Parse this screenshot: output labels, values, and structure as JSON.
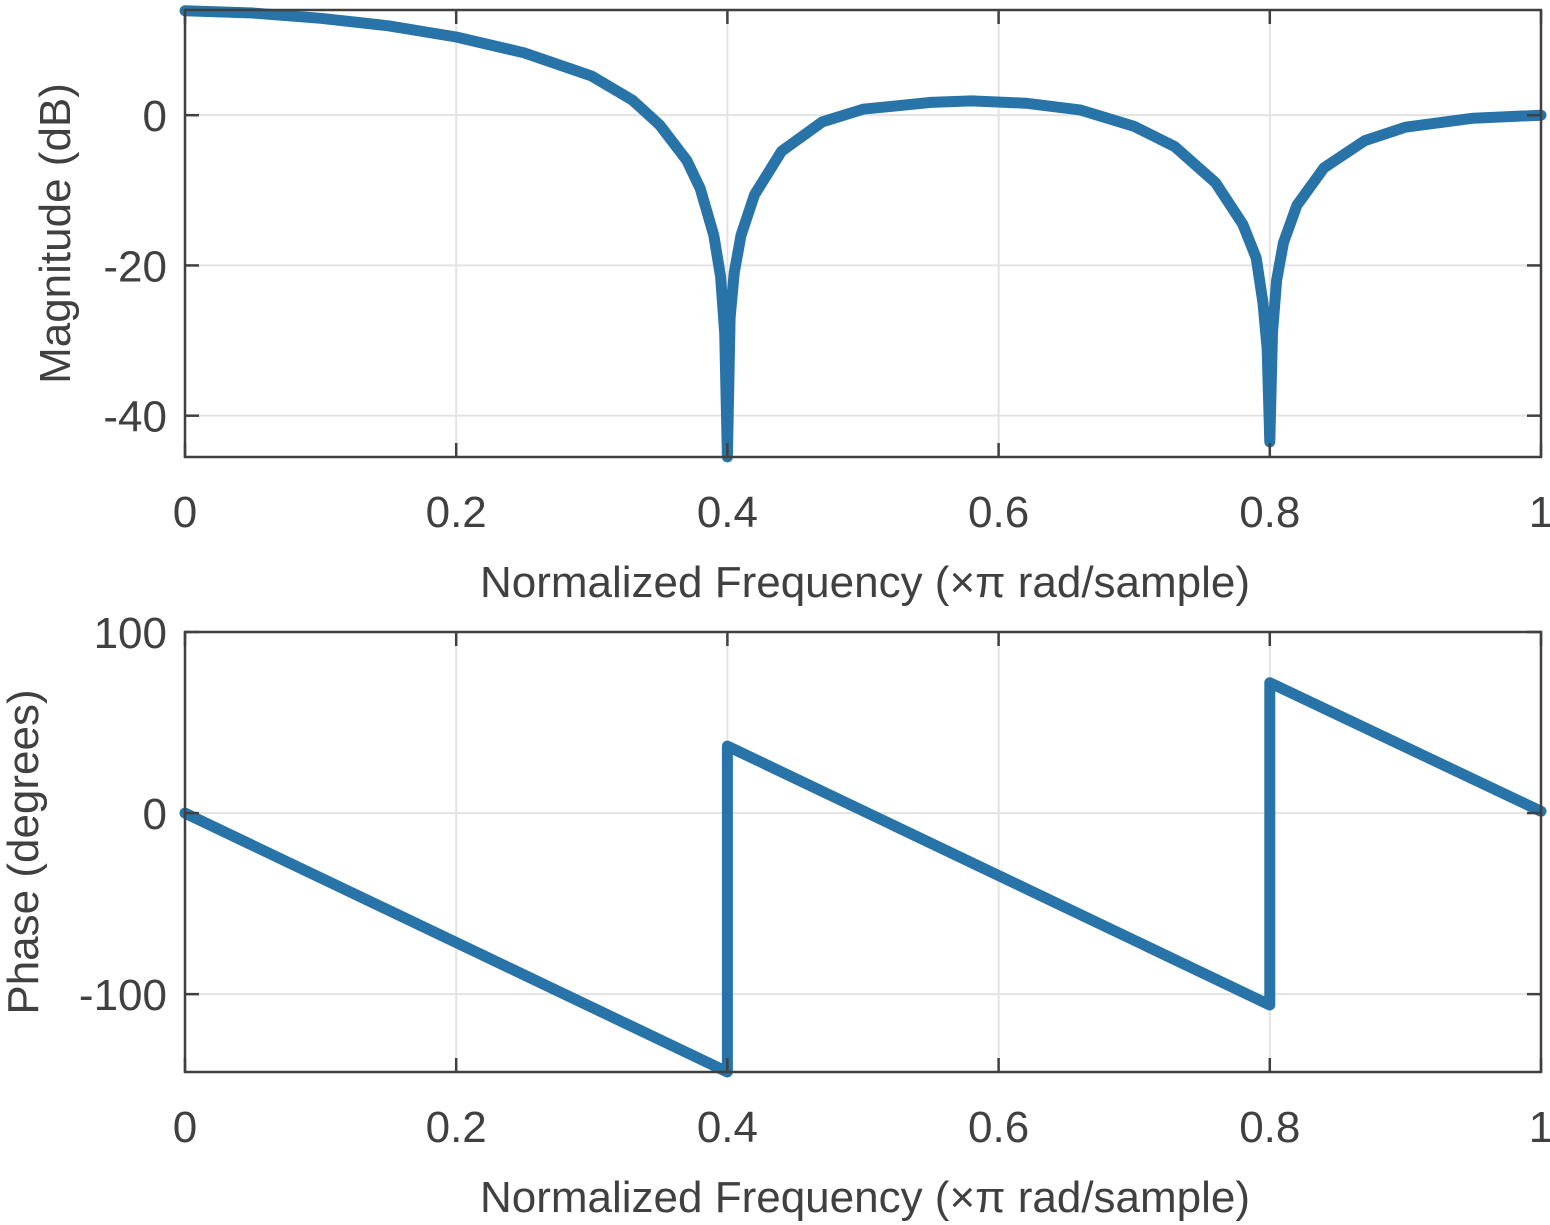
{
  "chart_data": [
    {
      "type": "line",
      "id": "magnitude",
      "title": "",
      "xlabel": "Normalized Frequency  (×π rad/sample)",
      "ylabel": "Magnitude (dB)",
      "xlim": [
        0,
        1
      ],
      "ylim": [
        -45.5,
        14
      ],
      "xticks": [
        0,
        0.2,
        0.4,
        0.6,
        0.8,
        1
      ],
      "xtick_labels": [
        "0",
        "0.2",
        "0.4",
        "0.6",
        "0.8",
        "1"
      ],
      "yticks": [
        -40,
        -20,
        0
      ],
      "ytick_labels": [
        "-40",
        "-20",
        "0"
      ],
      "grid": true,
      "color": "#2874a8",
      "series": [
        {
          "name": "magnitude",
          "x": [
            0,
            0.05,
            0.1,
            0.15,
            0.2,
            0.25,
            0.3,
            0.33,
            0.35,
            0.37,
            0.38,
            0.39,
            0.395,
            0.398,
            0.4,
            0.402,
            0.405,
            0.41,
            0.42,
            0.44,
            0.47,
            0.5,
            0.55,
            0.58,
            0.62,
            0.66,
            0.7,
            0.73,
            0.76,
            0.78,
            0.79,
            0.795,
            0.798,
            0.8,
            0.802,
            0.805,
            0.81,
            0.82,
            0.84,
            0.87,
            0.9,
            0.95,
            1.0
          ],
          "y": [
            13.9,
            13.6,
            12.9,
            11.9,
            10.4,
            8.3,
            5.2,
            2.0,
            -1.3,
            -6.0,
            -9.8,
            -16.0,
            -21.5,
            -29.0,
            -45.5,
            -27.0,
            -21.0,
            -16.0,
            -10.6,
            -4.8,
            -0.9,
            0.8,
            1.7,
            1.9,
            1.6,
            0.7,
            -1.5,
            -4.2,
            -9.0,
            -14.5,
            -19.0,
            -25.0,
            -31.0,
            -43.5,
            -29.0,
            -22.0,
            -17.0,
            -12.0,
            -7.0,
            -3.4,
            -1.6,
            -0.4,
            0.0
          ]
        }
      ]
    },
    {
      "type": "line",
      "id": "phase",
      "title": "",
      "xlabel": "Normalized Frequency  (×π rad/sample)",
      "ylabel": "Phase (degrees)",
      "xlim": [
        0,
        1
      ],
      "ylim": [
        -143,
        100
      ],
      "xticks": [
        0,
        0.2,
        0.4,
        0.6,
        0.8,
        1
      ],
      "xtick_labels": [
        "0",
        "0.2",
        "0.4",
        "0.6",
        "0.8",
        "1"
      ],
      "yticks": [
        -100,
        0,
        100
      ],
      "ytick_labels": [
        "-100",
        "0",
        "100"
      ],
      "grid": true,
      "color": "#2874a8",
      "series": [
        {
          "name": "phase",
          "x": [
            0,
            0.4,
            0.4,
            0.8,
            0.8,
            1.0
          ],
          "y": [
            0,
            -143,
            37,
            -106,
            72,
            1
          ]
        }
      ]
    }
  ]
}
